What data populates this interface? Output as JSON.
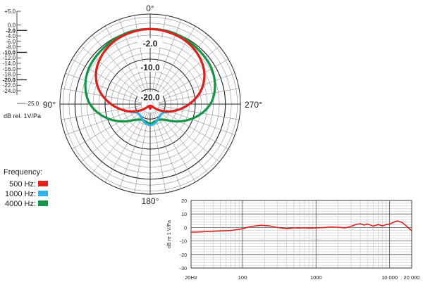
{
  "chart_data": [
    {
      "type": "polar",
      "angle_labels": [
        {
          "deg": 0,
          "text": "0°"
        },
        {
          "deg": 90,
          "text": "90°"
        },
        {
          "deg": 180,
          "text": "180°"
        },
        {
          "deg": 270,
          "text": "270°"
        }
      ],
      "ring_labels": [
        {
          "db": -2.0,
          "text": "-2.0"
        },
        {
          "db": -10.0,
          "text": "-10.0"
        },
        {
          "db": -20.0,
          "text": "-20.0"
        }
      ],
      "scale_ticks": [
        "+5.0",
        "0.0",
        "-2.0",
        "-4.0",
        "-6.0",
        "-8.0",
        "-10.0",
        "-12.0",
        "-14.0",
        "-16.0",
        "-18.0",
        "-20.0",
        "-22.0",
        "-24.0"
      ],
      "scale_bottom": "-25.0",
      "scale_unit": "dB rel. 1V/Pa",
      "legend_title": "Frequency:",
      "series": [
        {
          "name": "500 Hz:",
          "color": "#e0201b",
          "angles": [
            0,
            15,
            30,
            45,
            60,
            75,
            90,
            105,
            120,
            135,
            150,
            165,
            180,
            195,
            210,
            225,
            240,
            255,
            270,
            285,
            300,
            315,
            330,
            345
          ],
          "values": [
            0,
            -0.3,
            -0.9,
            -2.2,
            -4.2,
            -7.5,
            -12,
            -16.5,
            -20.5,
            -23.5,
            -24.3,
            -24.3,
            -23.5,
            -24.3,
            -24.3,
            -23.5,
            -20.5,
            -16.5,
            -12,
            -7.5,
            -4.2,
            -2.2,
            -0.9,
            -0.3
          ]
        },
        {
          "name": "1000 Hz:",
          "color": "#33b0e3",
          "angles": [
            0,
            15,
            30,
            45,
            60,
            75,
            90,
            105,
            120,
            135,
            150,
            165,
            180,
            195,
            210,
            225,
            240,
            255,
            270,
            285,
            300,
            315,
            330,
            345
          ],
          "values": [
            0,
            -0.3,
            -0.9,
            -2.2,
            -4.2,
            -7.5,
            -12,
            -16.5,
            -19.5,
            -20,
            -19.5,
            -18.5,
            -18,
            -18.5,
            -19.5,
            -20,
            -19.5,
            -16.5,
            -12,
            -7.5,
            -4.2,
            -2.2,
            -0.9,
            -0.3
          ]
        },
        {
          "name": "4000 Hz:",
          "color": "#159447",
          "angles": [
            0,
            15,
            30,
            45,
            60,
            75,
            90,
            105,
            120,
            135,
            150,
            165,
            180,
            195,
            210,
            225,
            240,
            255,
            270,
            285,
            300,
            315,
            330,
            345
          ],
          "values": [
            0,
            0,
            -0.4,
            -0.9,
            -1.4,
            -2.7,
            -5,
            -9,
            -13.5,
            -17.5,
            -19,
            -19,
            -18.5,
            -19,
            -19,
            -17.5,
            -13.5,
            -9,
            -5,
            -2.7,
            -1.4,
            -0.9,
            -0.4,
            0
          ]
        }
      ]
    },
    {
      "type": "line",
      "x_tick_labels": [
        {
          "x": 20,
          "text": "20Hz"
        },
        {
          "x": 100,
          "text": "100"
        },
        {
          "x": 1000,
          "text": "1000"
        },
        {
          "x": 10000,
          "text": "10 000"
        },
        {
          "x": 20000,
          "text": "20 000"
        }
      ],
      "xlim": [
        20,
        20000
      ],
      "x_scale": "log",
      "y_ticks": [
        20,
        10,
        0,
        -10,
        -20,
        -30
      ],
      "ylim": [
        -30,
        20
      ],
      "ylabel": "dB re 1 V/Pa",
      "grid": true,
      "series": [
        {
          "color": "#e0201b",
          "x": [
            20,
            40,
            70,
            100,
            130,
            180,
            230,
            300,
            400,
            500,
            600,
            700,
            800,
            1000,
            1300,
            1600,
            2000,
            2500,
            3000,
            3500,
            4000,
            4500,
            5000,
            6000,
            7000,
            8000,
            9000,
            10000,
            12000,
            13000,
            15000,
            17000,
            20000
          ],
          "y": [
            -3.5,
            -2.8,
            -2.2,
            -1,
            0.8,
            1.6,
            1.2,
            0,
            -0.8,
            -0.2,
            -0.4,
            -0.2,
            -0.5,
            -0.3,
            0,
            0.4,
            0.1,
            -0.3,
            0.8,
            2.3,
            2.8,
            1.8,
            2.6,
            1.0,
            2.2,
            1.2,
            2.2,
            2.5,
            4.5,
            4.8,
            3.5,
            1,
            -2.5
          ]
        }
      ]
    }
  ]
}
